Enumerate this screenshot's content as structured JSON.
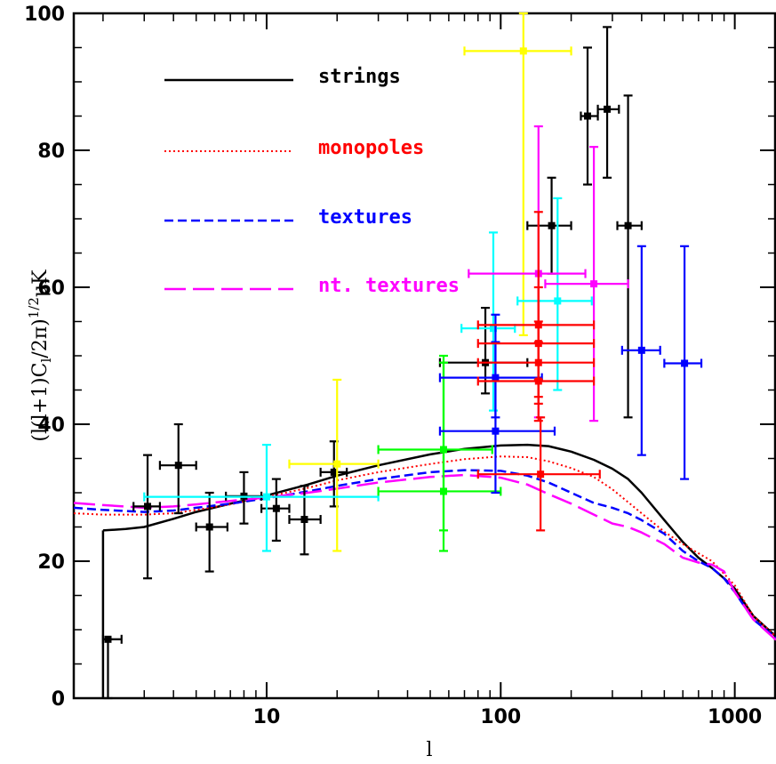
{
  "chart_data": {
    "type": "line",
    "xlabel": "l",
    "ylabel": "(l(l+1)C",
    "ylabel_sub": "l",
    "ylabel_tail": "/2π)",
    "ylabel_sup": "1/2",
    "ylabel_unit": "μK",
    "xscale": "log",
    "xlim": [
      1.5,
      1500
    ],
    "ylim": [
      0,
      100
    ],
    "xticks": [
      {
        "value": 10,
        "label": "10"
      },
      {
        "value": 100,
        "label": "100"
      },
      {
        "value": 1000,
        "label": "1000"
      }
    ],
    "yticks": [
      {
        "value": 0,
        "label": "0"
      },
      {
        "value": 20,
        "label": "20"
      },
      {
        "value": 40,
        "label": "40"
      },
      {
        "value": 60,
        "label": "60"
      },
      {
        "value": 80,
        "label": "80"
      },
      {
        "value": 100,
        "label": "100"
      }
    ],
    "legend_position": "top-left",
    "series": [
      {
        "name": "strings",
        "color": "#000000",
        "dash": "solid",
        "points": [
          [
            2,
            24.5
          ],
          [
            2.5,
            24.7
          ],
          [
            3,
            25
          ],
          [
            4,
            26.2
          ],
          [
            5,
            27.2
          ],
          [
            7,
            28.4
          ],
          [
            10,
            29.6
          ],
          [
            15,
            31.2
          ],
          [
            20,
            32.5
          ],
          [
            30,
            34
          ],
          [
            50,
            35.6
          ],
          [
            70,
            36.4
          ],
          [
            100,
            36.9
          ],
          [
            130,
            37
          ],
          [
            160,
            36.8
          ],
          [
            200,
            36
          ],
          [
            250,
            34.8
          ],
          [
            300,
            33.5
          ],
          [
            350,
            32
          ],
          [
            400,
            30
          ],
          [
            500,
            26
          ],
          [
            600,
            22.8
          ],
          [
            700,
            20.5
          ],
          [
            800,
            19
          ],
          [
            900,
            17.5
          ],
          [
            1000,
            16
          ],
          [
            1200,
            12
          ],
          [
            1500,
            9
          ]
        ]
      },
      {
        "name": "monopoles",
        "color": "#ff0000",
        "dash": "dotted",
        "points": [
          [
            1.5,
            27
          ],
          [
            2,
            26.8
          ],
          [
            3,
            26.8
          ],
          [
            4,
            27
          ],
          [
            5,
            27.5
          ],
          [
            7,
            28.3
          ],
          [
            10,
            29.4
          ],
          [
            15,
            30.7
          ],
          [
            20,
            31.8
          ],
          [
            30,
            33
          ],
          [
            50,
            34.2
          ],
          [
            70,
            34.9
          ],
          [
            100,
            35.3
          ],
          [
            130,
            35.2
          ],
          [
            160,
            34.6
          ],
          [
            200,
            33.6
          ],
          [
            250,
            32.3
          ],
          [
            300,
            30.5
          ],
          [
            400,
            27
          ],
          [
            500,
            24.3
          ],
          [
            600,
            22.5
          ],
          [
            800,
            20
          ],
          [
            1000,
            16.5
          ],
          [
            1200,
            12
          ],
          [
            1500,
            9
          ]
        ]
      },
      {
        "name": "textures",
        "color": "#0000ff",
        "dash": "dashed",
        "points": [
          [
            1.5,
            27.8
          ],
          [
            2,
            27.5
          ],
          [
            3,
            27.2
          ],
          [
            4,
            27.4
          ],
          [
            5,
            27.8
          ],
          [
            7,
            28.4
          ],
          [
            10,
            29.2
          ],
          [
            15,
            30.2
          ],
          [
            20,
            31
          ],
          [
            30,
            32
          ],
          [
            50,
            33
          ],
          [
            70,
            33.3
          ],
          [
            100,
            33.2
          ],
          [
            130,
            32.5
          ],
          [
            160,
            31.5
          ],
          [
            200,
            30
          ],
          [
            250,
            28.5
          ],
          [
            300,
            27.8
          ],
          [
            350,
            27
          ],
          [
            400,
            26
          ],
          [
            500,
            24
          ],
          [
            600,
            21.5
          ],
          [
            700,
            20
          ],
          [
            800,
            19
          ],
          [
            900,
            17.5
          ],
          [
            1000,
            15.5
          ],
          [
            1200,
            11.5
          ],
          [
            1500,
            8.8
          ]
        ]
      },
      {
        "name": "nt. textures",
        "color": "#ff00ff",
        "dash": "longdash",
        "points": [
          [
            1.5,
            28.5
          ],
          [
            2,
            28.2
          ],
          [
            3,
            27.8
          ],
          [
            4,
            28
          ],
          [
            5,
            28.3
          ],
          [
            7,
            28.8
          ],
          [
            10,
            29.3
          ],
          [
            15,
            30
          ],
          [
            20,
            30.6
          ],
          [
            30,
            31.5
          ],
          [
            50,
            32.3
          ],
          [
            70,
            32.6
          ],
          [
            100,
            32.2
          ],
          [
            130,
            31.2
          ],
          [
            160,
            29.8
          ],
          [
            200,
            28.4
          ],
          [
            250,
            26.8
          ],
          [
            300,
            25.5
          ],
          [
            350,
            25
          ],
          [
            400,
            24.2
          ],
          [
            500,
            22.5
          ],
          [
            600,
            20.5
          ],
          [
            700,
            19.8
          ],
          [
            800,
            19.5
          ],
          [
            900,
            18.5
          ],
          [
            1000,
            15.5
          ],
          [
            1200,
            11.5
          ],
          [
            1500,
            8.5
          ]
        ]
      }
    ],
    "error_points": [
      {
        "color": "#000000",
        "x": 2.1,
        "y": 8.6,
        "xlo": 2.0,
        "xhi": 2.4,
        "ylo": 0,
        "yhi": 8.6
      },
      {
        "color": "#000000",
        "x": 3.1,
        "y": 28,
        "xlo": 2.7,
        "xhi": 3.5,
        "ylo": 17.5,
        "yhi": 35.5
      },
      {
        "color": "#000000",
        "x": 4.2,
        "y": 34,
        "xlo": 3.5,
        "xhi": 5.0,
        "ylo": 27,
        "yhi": 40
      },
      {
        "color": "#000000",
        "x": 5.7,
        "y": 25,
        "xlo": 5.0,
        "xhi": 6.8,
        "ylo": 18.5,
        "yhi": 30
      },
      {
        "color": "#000000",
        "x": 8.0,
        "y": 29.5,
        "xlo": 6.7,
        "xhi": 9.5,
        "ylo": 25.5,
        "yhi": 33
      },
      {
        "color": "#000000",
        "x": 11,
        "y": 27.7,
        "xlo": 9.5,
        "xhi": 12.5,
        "ylo": 23,
        "yhi": 32
      },
      {
        "color": "#000000",
        "x": 14.5,
        "y": 26.1,
        "xlo": 12.5,
        "xhi": 17,
        "ylo": 21,
        "yhi": 31
      },
      {
        "color": "#000000",
        "x": 19.4,
        "y": 33,
        "xlo": 17,
        "xhi": 22,
        "ylo": 28,
        "yhi": 37.5
      },
      {
        "color": "#000000",
        "x": 86,
        "y": 49,
        "xlo": 55,
        "xhi": 130,
        "ylo": 44.5,
        "yhi": 57
      },
      {
        "color": "#000000",
        "x": 165,
        "y": 69,
        "xlo": 130,
        "xhi": 200,
        "ylo": 62,
        "yhi": 76
      },
      {
        "color": "#000000",
        "x": 235,
        "y": 85,
        "xlo": 220,
        "xhi": 260,
        "ylo": 75,
        "yhi": 95
      },
      {
        "color": "#000000",
        "x": 285,
        "y": 86,
        "xlo": 260,
        "xhi": 320,
        "ylo": 76,
        "yhi": 98
      },
      {
        "color": "#000000",
        "x": 350,
        "y": 69,
        "xlo": 315,
        "xhi": 400,
        "ylo": 41,
        "yhi": 88
      },
      {
        "color": "#ffff00",
        "x": 20,
        "y": 34.2,
        "xlo": 12.5,
        "xhi": 30,
        "ylo": 21.5,
        "yhi": 46.5
      },
      {
        "color": "#ffff00",
        "x": 125,
        "y": 94.5,
        "xlo": 70,
        "xhi": 200,
        "ylo": 53,
        "yhi": 100
      },
      {
        "color": "#00ffff",
        "x": 10,
        "y": 29.4,
        "xlo": 3,
        "xhi": 30,
        "ylo": 21.5,
        "yhi": 37
      },
      {
        "color": "#00ffff",
        "x": 93,
        "y": 54,
        "xlo": 68,
        "xhi": 115,
        "ylo": 42,
        "yhi": 68
      },
      {
        "color": "#00ffff",
        "x": 175,
        "y": 58,
        "xlo": 118,
        "xhi": 245,
        "ylo": 45,
        "yhi": 73
      },
      {
        "color": "#00ff00",
        "x": 57,
        "y": 36.3,
        "xlo": 30,
        "xhi": 92,
        "ylo": 21.5,
        "yhi": 50
      },
      {
        "color": "#00ff00",
        "x": 57,
        "y": 30.2,
        "xlo": 30,
        "xhi": 100,
        "ylo": 24.5,
        "yhi": 49
      },
      {
        "color": "#0000ff",
        "x": 95,
        "y": 39,
        "xlo": 55,
        "xhi": 170,
        "ylo": 30,
        "yhi": 56
      },
      {
        "color": "#0000ff",
        "x": 95,
        "y": 46.8,
        "xlo": 55,
        "xhi": 150,
        "ylo": 41,
        "yhi": 52
      },
      {
        "color": "#0000ff",
        "x": 400,
        "y": 50.8,
        "xlo": 330,
        "xhi": 480,
        "ylo": 35.5,
        "yhi": 66
      },
      {
        "color": "#0000ff",
        "x": 610,
        "y": 48.9,
        "xlo": 500,
        "xhi": 720,
        "ylo": 32,
        "yhi": 66
      },
      {
        "color": "#ff00ff",
        "x": 145,
        "y": 62,
        "xlo": 73,
        "xhi": 230,
        "ylo": 41,
        "yhi": 83.5
      },
      {
        "color": "#ff00ff",
        "x": 250,
        "y": 60.5,
        "xlo": 155,
        "xhi": 350,
        "ylo": 40.5,
        "yhi": 80.5
      },
      {
        "color": "#ff0000",
        "x": 145,
        "y": 54.5,
        "xlo": 80,
        "xhi": 250,
        "ylo": 46.5,
        "yhi": 71
      },
      {
        "color": "#ff0000",
        "x": 145,
        "y": 51.8,
        "xlo": 80,
        "xhi": 250,
        "ylo": 44,
        "yhi": 60
      },
      {
        "color": "#ff0000",
        "x": 145,
        "y": 49,
        "xlo": 80,
        "xhi": 250,
        "ylo": 43,
        "yhi": 55
      },
      {
        "color": "#ff0000",
        "x": 145,
        "y": 46.3,
        "xlo": 80,
        "xhi": 250,
        "ylo": 40.5,
        "yhi": 52
      },
      {
        "color": "#ff0000",
        "x": 148,
        "y": 32.7,
        "xlo": 80,
        "xhi": 265,
        "ylo": 24.5,
        "yhi": 41
      }
    ]
  }
}
